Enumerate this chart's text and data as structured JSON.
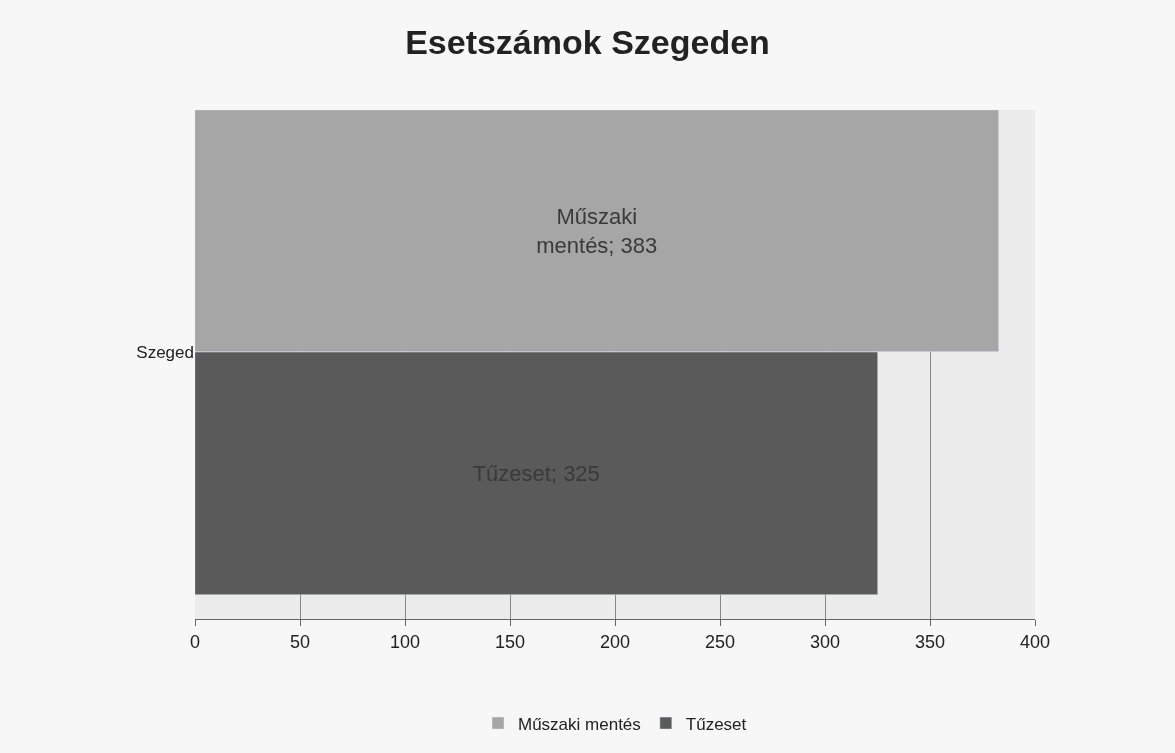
{
  "chart_data": {
    "type": "bar",
    "orientation": "horizontal",
    "title": "Esetszámok Szegeden",
    "categories": [
      "Szeged"
    ],
    "series": [
      {
        "name": "Műszaki mentés",
        "color": "#a6a6a6",
        "values": [
          383
        ],
        "value_labels": [
          "Műszaki mentés; 383"
        ]
      },
      {
        "name": "Tűzeset",
        "color": "#5a5a5a",
        "values": [
          325
        ],
        "value_labels": [
          "Tűzeset; 325"
        ]
      }
    ],
    "xlim": [
      0,
      400
    ],
    "xticks": [
      0,
      50,
      100,
      150,
      200,
      250,
      300,
      350,
      400
    ],
    "grid": "x",
    "legend": "bottom"
  }
}
